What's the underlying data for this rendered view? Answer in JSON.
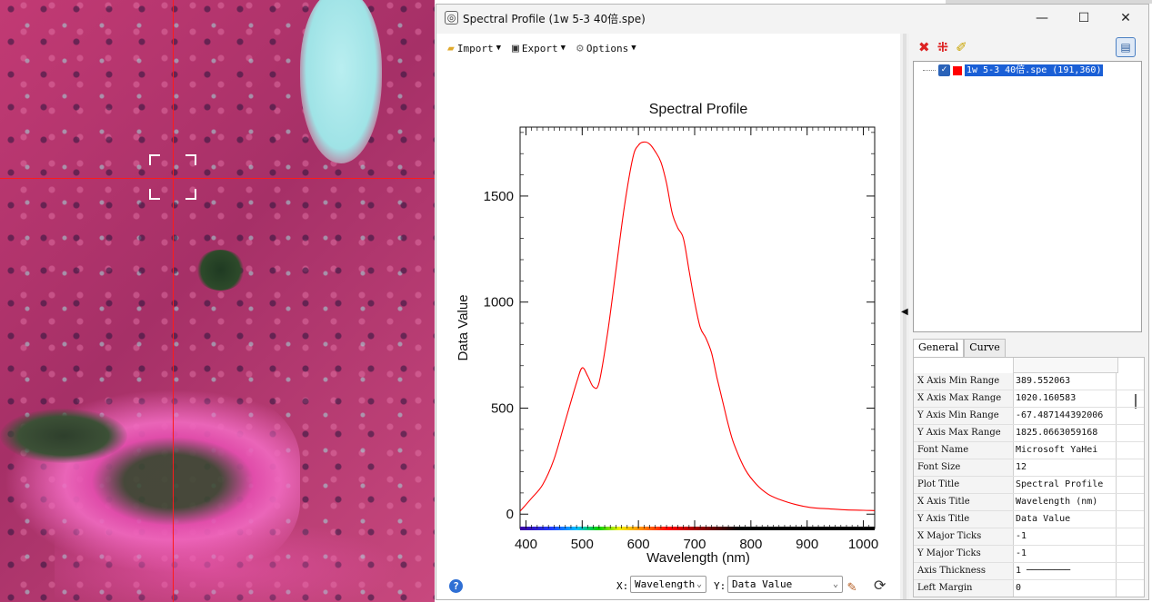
{
  "window": {
    "title": "Spectral Profile (1w 5-3 40倍.spe)",
    "minimize": "—",
    "maximize": "☐",
    "close": "✕"
  },
  "toolbar": {
    "import_label": "Import",
    "export_label": "Export",
    "options_label": "Options"
  },
  "chart_data": {
    "type": "line",
    "title": "Spectral Profile",
    "xlabel": "Wavelength (nm)",
    "ylabel": "Data Value",
    "xlim": [
      389.552063,
      1020.160583
    ],
    "ylim": [
      -67.487144392006,
      1825.0663059168
    ],
    "xticks": [
      400,
      500,
      600,
      700,
      800,
      900,
      1000
    ],
    "yticks": [
      0,
      500,
      1000,
      1500
    ],
    "grid": false,
    "series": [
      {
        "color": "#ff0000",
        "x": [
          390,
          410,
          430,
          450,
          470,
          490,
          500,
          510,
          520,
          530,
          545,
          560,
          575,
          590,
          600,
          610,
          620,
          630,
          640,
          650,
          660,
          670,
          680,
          690,
          700,
          710,
          720,
          730,
          740,
          750,
          760,
          770,
          790,
          810,
          830,
          850,
          880,
          910,
          940,
          970,
          1000,
          1020
        ],
        "y": [
          15,
          75,
          140,
          260,
          440,
          620,
          690,
          650,
          600,
          620,
          850,
          1150,
          1450,
          1680,
          1740,
          1755,
          1745,
          1710,
          1660,
          1560,
          1420,
          1350,
          1300,
          1150,
          1000,
          880,
          830,
          760,
          640,
          530,
          420,
          330,
          210,
          140,
          95,
          70,
          45,
          30,
          25,
          20,
          18,
          17
        ]
      }
    ]
  },
  "bottom_bar": {
    "help": "?",
    "x_label": "X:",
    "x_value": "Wavelength",
    "y_label": "Y:",
    "y_value": "Data Value"
  },
  "tree": {
    "item_label": "1w 5-3 40倍.spe (191,360)",
    "swatch_color": "#ff0000"
  },
  "tabs": [
    "General",
    "Curve"
  ],
  "properties": [
    {
      "key": "X Axis Min Range",
      "value": "389.552063"
    },
    {
      "key": "X Axis Max Range",
      "value": "1020.160583"
    },
    {
      "key": "Y Axis Min Range",
      "value": "-67.487144392006"
    },
    {
      "key": "Y Axis Max Range",
      "value": "1825.0663059168"
    },
    {
      "key": "Font Name",
      "value": "Microsoft YaHei"
    },
    {
      "key": "Font Size",
      "value": "12"
    },
    {
      "key": "Plot Title",
      "value": "Spectral Profile"
    },
    {
      "key": "X Axis Title",
      "value": "Wavelength (nm)"
    },
    {
      "key": "Y Axis Title",
      "value": "Data Value"
    },
    {
      "key": "X Major Ticks",
      "value": "-1"
    },
    {
      "key": "Y Major Ticks",
      "value": "-1"
    },
    {
      "key": "Axis Thickness",
      "value": "1 ────────"
    },
    {
      "key": "Left Margin",
      "value": "0"
    }
  ]
}
